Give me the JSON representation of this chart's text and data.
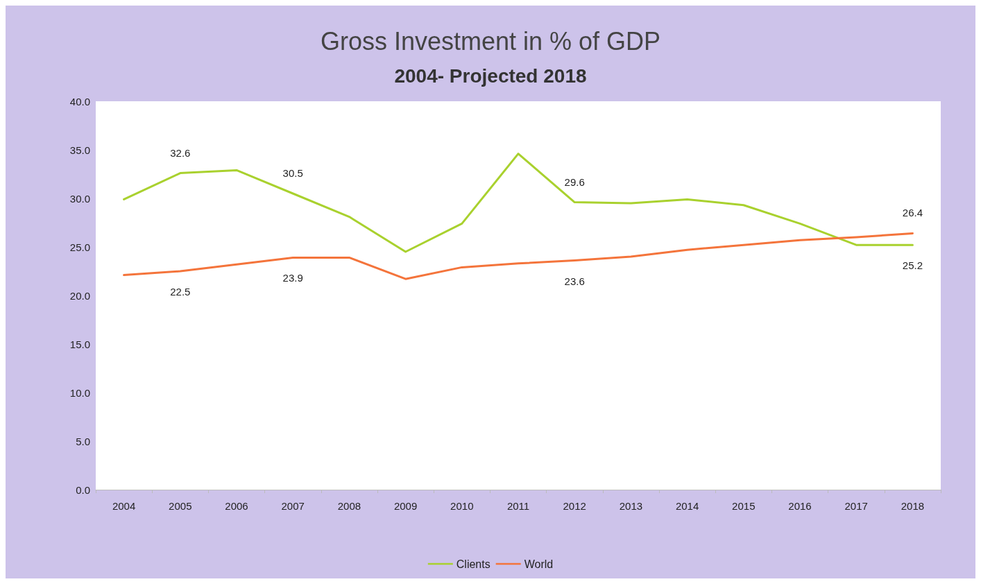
{
  "chart_data": {
    "type": "line",
    "title": "Gross Investment in % of GDP",
    "subtitle": "2004- Projected 2018",
    "categories": [
      "2004",
      "2005",
      "2006",
      "2007",
      "2008",
      "2009",
      "2010",
      "2011",
      "2012",
      "2013",
      "2014",
      "2015",
      "2016",
      "2017",
      "2018"
    ],
    "series": [
      {
        "name": "Clients",
        "color": "#a9d12e",
        "values": [
          29.9,
          32.6,
          32.9,
          30.5,
          28.1,
          24.5,
          27.4,
          34.6,
          29.6,
          29.5,
          29.9,
          29.3,
          27.4,
          25.2,
          25.2
        ],
        "value_labels": [
          null,
          "32.6",
          null,
          "30.5",
          null,
          null,
          null,
          null,
          "29.6",
          null,
          null,
          null,
          null,
          null,
          "25.2"
        ]
      },
      {
        "name": "World",
        "color": "#f4743b",
        "values": [
          22.1,
          22.5,
          23.2,
          23.9,
          23.9,
          21.7,
          22.9,
          23.3,
          23.6,
          24.0,
          24.7,
          25.2,
          25.7,
          26.0,
          26.4
        ],
        "value_labels": [
          null,
          "22.5",
          null,
          "23.9",
          null,
          null,
          null,
          null,
          "23.6",
          null,
          null,
          null,
          null,
          null,
          "26.4"
        ]
      }
    ],
    "ylim": [
      0,
      40
    ],
    "yticks": [
      {
        "value": 0,
        "label": "0.0"
      },
      {
        "value": 5,
        "label": "5.0"
      },
      {
        "value": 10,
        "label": "10.0"
      },
      {
        "value": 15,
        "label": "15.0"
      },
      {
        "value": 20,
        "label": "20.0"
      },
      {
        "value": 25,
        "label": "25.0"
      },
      {
        "value": 30,
        "label": "30.0"
      },
      {
        "value": 35,
        "label": "35.0"
      },
      {
        "value": 40,
        "label": "40.0"
      }
    ],
    "grid": false,
    "legend": "bottom",
    "marker": "none",
    "line_style": "solid"
  }
}
